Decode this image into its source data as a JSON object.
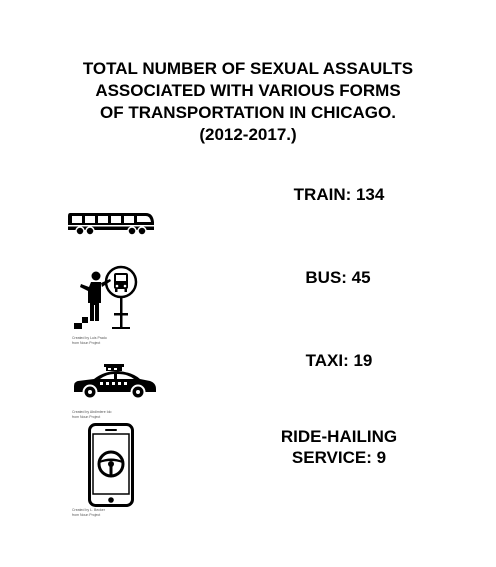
{
  "title_lines": [
    "TOTAL NUMBER OF SEXUAL ASSAULTS",
    "ASSOCIATED WITH VARIOUS FORMS",
    "OF TRANSPORTATION IN CHICAGO.",
    "(2012-2017.)"
  ],
  "chart_data": {
    "type": "table",
    "categories": [
      "TRAIN",
      "BUS",
      "TAXI",
      "RIDE-HAILING SERVICE"
    ],
    "values": [
      134,
      45,
      19,
      9
    ],
    "title": "TOTAL NUMBER OF SEXUAL ASSAULTS ASSOCIATED WITH VARIOUS FORMS OF TRANSPORTATION IN CHICAGO. (2012-2017.)"
  },
  "items": [
    {
      "label_lines": [
        "TRAIN: 134"
      ],
      "icon": "train-icon",
      "credit_lines": []
    },
    {
      "label_lines": [
        "BUS: 45"
      ],
      "icon": "bus-stop-icon",
      "credit_lines": [
        "Created by Luis Prado",
        "from Noun Project"
      ]
    },
    {
      "label_lines": [
        "TAXI: 19"
      ],
      "icon": "taxi-icon",
      "credit_lines": [
        "Created by Abdimlere Ido",
        "from Noun Project"
      ]
    },
    {
      "label_lines": [
        "RIDE-HAILING",
        "SERVICE: 9"
      ],
      "icon": "smartphone-steering-wheel-icon",
      "credit_lines": [
        "Created by L. Becker",
        "from Noun Project"
      ]
    }
  ]
}
